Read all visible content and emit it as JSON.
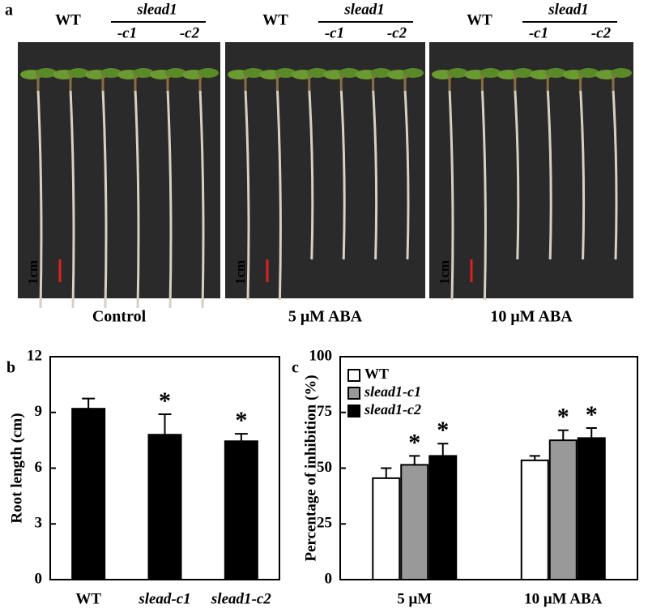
{
  "panel_a": {
    "label": "a",
    "mutant": "slead1",
    "wt": "WT",
    "lines": [
      "-c1",
      "-c2"
    ],
    "scale": "1cm",
    "conditions": [
      "Control",
      "5 μM ABA",
      "10 μM ABA"
    ]
  },
  "chart_data": [
    {
      "type": "bar",
      "label": "b",
      "ylabel": "Root length (cm)",
      "categories": [
        "WT",
        "slead-c1",
        "slead1-c2"
      ],
      "values": [
        9.2,
        7.8,
        7.45
      ],
      "errors": [
        0.55,
        1.1,
        0.4
      ],
      "significance": [
        null,
        "*",
        "*"
      ],
      "color": "#000000",
      "ylim": [
        0,
        12
      ],
      "yticks": [
        0,
        3,
        6,
        9,
        12
      ],
      "grid": false
    },
    {
      "type": "grouped-bar",
      "label": "c",
      "ylabel": "Percentage of inhibition (%)",
      "categories": [
        "5 μM",
        "10 μM ABA"
      ],
      "series": [
        {
          "name": "WT",
          "color": "#ffffff",
          "values": [
            45.5,
            53.5
          ],
          "errors": [
            4.5,
            2
          ],
          "significance": [
            null,
            null
          ]
        },
        {
          "name": "slead1-c1",
          "color": "#999999",
          "values": [
            51.5,
            62.5
          ],
          "errors": [
            4,
            4.5
          ],
          "significance": [
            "*",
            "*"
          ]
        },
        {
          "name": "slead1-c2",
          "color": "#000000",
          "values": [
            55.5,
            63.5
          ],
          "errors": [
            5.5,
            4.5
          ],
          "significance": [
            "*",
            "*"
          ]
        }
      ],
      "ylim": [
        0,
        100
      ],
      "yticks": [
        0,
        25,
        50,
        75,
        100
      ],
      "grid": false,
      "legend": "top-left"
    }
  ]
}
